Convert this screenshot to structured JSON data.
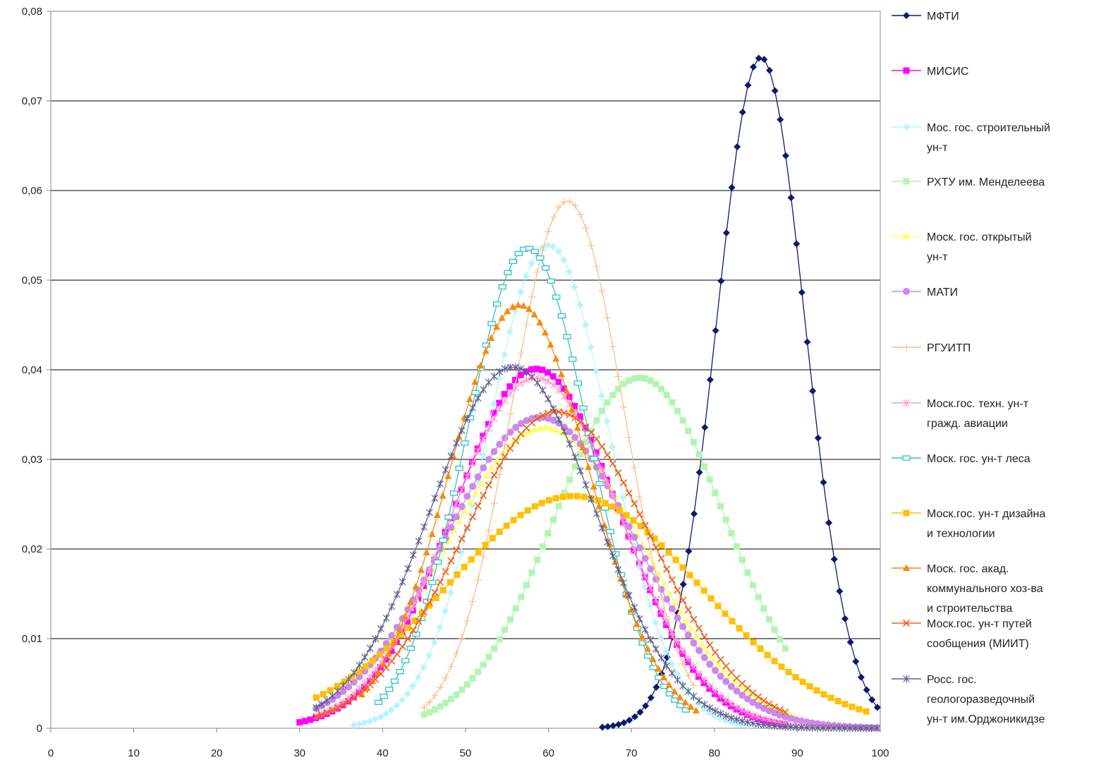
{
  "chart_data": {
    "type": "line",
    "title": "",
    "xlabel": "",
    "ylabel": "",
    "xlim": [
      0,
      100
    ],
    "ylim": [
      0,
      0.08
    ],
    "x_ticks": [
      0,
      10,
      20,
      30,
      40,
      50,
      60,
      70,
      80,
      90,
      100
    ],
    "x_tick_labels": [
      "0",
      "10",
      "20",
      "30",
      "40",
      "50",
      "60",
      "70",
      "80",
      "90",
      "100"
    ],
    "y_ticks": [
      0,
      0.01,
      0.02,
      0.03,
      0.04,
      0.05,
      0.06,
      0.07,
      0.08
    ],
    "y_tick_labels": [
      "0",
      "0,01",
      "0,02",
      "0,03",
      "0,04",
      "0,05",
      "0,06",
      "0,07",
      "0,08"
    ],
    "grid": "horizontal",
    "legend_position": "right",
    "series": [
      {
        "name": "МФТИ",
        "legend_lines": [
          "МФТИ"
        ],
        "color": "#0a1a6e",
        "marker": "diamond",
        "mean": 85.6,
        "sd": 5.33,
        "xmin": 66.5,
        "xmax": 100,
        "step": 0.65
      },
      {
        "name": "МИСИС",
        "legend_lines": [
          "МИСИС"
        ],
        "color": "#ff00ff",
        "marker": "square",
        "mean": 58.5,
        "sd": 9.95,
        "xmin": 30,
        "xmax": 89,
        "step": 0.65
      },
      {
        "name": "Мос. гос. строительный ун-т",
        "legend_lines": [
          "Мос. гос. строительный",
          "ун-т"
        ],
        "color": "#b8f4ff",
        "marker": "diamond",
        "mean": 60,
        "sd": 7.4,
        "xmin": 36.5,
        "xmax": 84,
        "step": 0.65
      },
      {
        "name": "РХТУ им. Менделеева",
        "legend_lines": [
          "РХТУ им. Менделеева"
        ],
        "color": "#b2f5b2",
        "marker": "square",
        "mean": 71,
        "sd": 10.2,
        "xmin": 45,
        "xmax": 89,
        "step": 0.65
      },
      {
        "name": "Моск. гос. открытый ун-т",
        "legend_lines": [
          "Моск. гос. открытый",
          "ун-т"
        ],
        "color": "#ffff66",
        "marker": "triangle",
        "mean": 59.5,
        "sd": 11.9,
        "xmin": 33,
        "xmax": 90,
        "step": 0.65
      },
      {
        "name": "МАТИ",
        "legend_lines": [
          "МАТИ"
        ],
        "color": "#cc88ee",
        "marker": "circle",
        "mean": 59,
        "sd": 11.5,
        "xmin": 32,
        "xmax": 100,
        "step": 0.65
      },
      {
        "name": "РГУИТП",
        "legend_lines": [
          "РГУИТП"
        ],
        "color": "#f9c090",
        "marker": "plus",
        "mean": 62.3,
        "sd": 6.78,
        "xmin": 45,
        "xmax": 78,
        "step": 0.65
      },
      {
        "name": "Моск.гос. техн. ун-т гражд. авиации",
        "legend_lines": [
          "Моск.гос. техн. ун-т",
          "гражд. авиации"
        ],
        "color": "#ff99cc",
        "marker": "star",
        "mean": 58.5,
        "sd": 10.2,
        "xmin": 32,
        "xmax": 100,
        "step": 0.65
      },
      {
        "name": "Моск. гос. ун-т леса",
        "legend_lines": [
          "Моск. гос. ун-т леса"
        ],
        "color": "#33c0c0",
        "marker": "dash",
        "mean": 57.5,
        "sd": 7.45,
        "xmin": 39.5,
        "xmax": 77,
        "step": 0.65
      },
      {
        "name": "Моск.гос. ун-т дизайна и технологии",
        "legend_lines": [
          "Моск.гос. ун-т дизайна",
          "и технологии"
        ],
        "color": "#ffc000",
        "marker": "square",
        "mean": 63,
        "sd": 15.4,
        "xmin": 32,
        "xmax": 99,
        "step": 0.85
      },
      {
        "name": "Моск. гос. акад. коммунального хоз-ва и строительства",
        "legend_lines": [
          "Моск. гос. акад.",
          "коммунального хоз-ва",
          "и строительства"
        ],
        "color": "#f28c0f",
        "marker": "triangle",
        "mean": 56.5,
        "sd": 8.45,
        "xmin": 37.5,
        "xmax": 78,
        "step": 0.65
      },
      {
        "name": "Моск.гос. ун-т путей сообщения (МИИТ)",
        "legend_lines": [
          "Моск.гос. ун-т путей",
          "сообщения (МИИТ)"
        ],
        "color": "#f0601a",
        "marker": "x",
        "mean": 61,
        "sd": 11.3,
        "xmin": 32,
        "xmax": 89,
        "step": 0.65
      },
      {
        "name": "Росс. гос. геологоразведочный ун-т им.Орджоникидзе",
        "legend_lines": [
          "Росс. гос.",
          "геологоразведочный",
          "ун-т им.Орджоникидзе"
        ],
        "color": "#5d5f8f",
        "marker": "star",
        "mean": 55.7,
        "sd": 9.9,
        "xmin": 32,
        "xmax": 100,
        "step": 0.65
      }
    ]
  }
}
